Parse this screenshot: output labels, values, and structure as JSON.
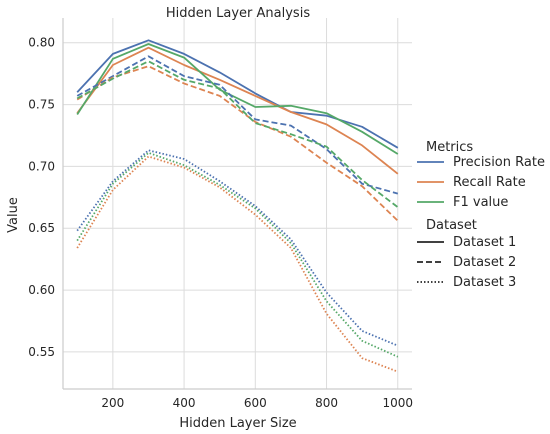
{
  "chart_data": {
    "type": "line",
    "title": "Hidden Layer Analysis",
    "xlabel": "Hidden Layer Size",
    "ylabel": "Value",
    "xlim": [
      60,
      1040
    ],
    "ylim": [
      0.52,
      0.82
    ],
    "x_ticks": [
      200,
      400,
      600,
      800,
      1000
    ],
    "y_ticks": [
      0.55,
      0.6,
      0.65,
      0.7,
      0.75,
      0.8
    ],
    "y_tick_labels": [
      "0.55",
      "0.60",
      "0.65",
      "0.70",
      "0.75",
      "0.80"
    ],
    "grid": true,
    "x": [
      100,
      200,
      300,
      400,
      500,
      600,
      700,
      800,
      900,
      1000
    ],
    "colors": {
      "Precision Rate": "#4c72b0",
      "Recall Rate": "#dd8452",
      "F1 value": "#55a868",
      "neutral": "#262626"
    },
    "dash_patterns": {
      "Dataset 1": "",
      "Dataset 2": "6,3",
      "Dataset 3": "1.5,2"
    },
    "legend": {
      "position": "right",
      "hue_title": "Metrics",
      "hue_items": [
        "Precision Rate",
        "Recall Rate",
        "F1 value"
      ],
      "style_title": "Dataset",
      "style_items": [
        "Dataset 1",
        "Dataset 2",
        "Dataset 3"
      ]
    },
    "series": [
      {
        "metric": "Precision Rate",
        "dataset": "Dataset 1",
        "values": [
          0.76,
          0.791,
          0.802,
          0.791,
          0.776,
          0.759,
          0.744,
          0.741,
          0.732,
          0.715
        ]
      },
      {
        "metric": "Recall Rate",
        "dataset": "Dataset 1",
        "values": [
          0.743,
          0.782,
          0.796,
          0.782,
          0.77,
          0.757,
          0.744,
          0.734,
          0.717,
          0.694
        ]
      },
      {
        "metric": "F1 value",
        "dataset": "Dataset 1",
        "values": [
          0.742,
          0.787,
          0.799,
          0.788,
          0.762,
          0.748,
          0.749,
          0.743,
          0.728,
          0.71
        ]
      },
      {
        "metric": "Precision Rate",
        "dataset": "Dataset 2",
        "values": [
          0.757,
          0.773,
          0.789,
          0.773,
          0.766,
          0.738,
          0.733,
          0.714,
          0.686,
          0.678
        ]
      },
      {
        "metric": "Recall Rate",
        "dataset": "Dataset 2",
        "values": [
          0.754,
          0.772,
          0.781,
          0.767,
          0.757,
          0.736,
          0.724,
          0.703,
          0.684,
          0.656
        ]
      },
      {
        "metric": "F1 value",
        "dataset": "Dataset 2",
        "values": [
          0.755,
          0.771,
          0.785,
          0.77,
          0.763,
          0.735,
          0.726,
          0.716,
          0.689,
          0.667
        ]
      },
      {
        "metric": "Precision Rate",
        "dataset": "Dataset 3",
        "values": [
          0.648,
          0.688,
          0.713,
          0.706,
          0.688,
          0.668,
          0.641,
          0.598,
          0.567,
          0.555
        ]
      },
      {
        "metric": "Recall Rate",
        "dataset": "Dataset 3",
        "values": [
          0.634,
          0.681,
          0.708,
          0.699,
          0.683,
          0.661,
          0.634,
          0.581,
          0.545,
          0.534
        ]
      },
      {
        "metric": "F1 value",
        "dataset": "Dataset 3",
        "values": [
          0.64,
          0.686,
          0.711,
          0.701,
          0.685,
          0.666,
          0.638,
          0.591,
          0.559,
          0.546
        ]
      }
    ]
  }
}
